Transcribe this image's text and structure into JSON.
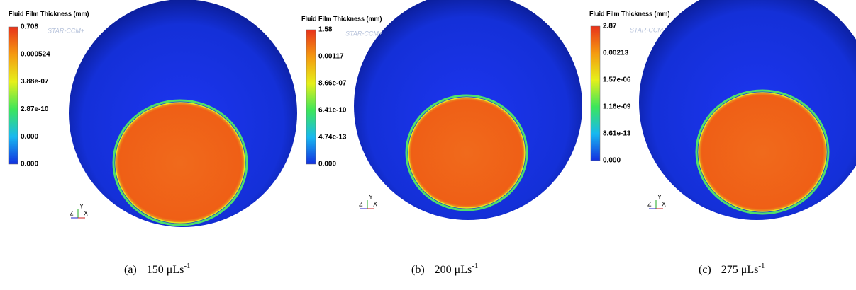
{
  "panels": [
    {
      "legend_title": "Fluid Film Thickness (mm)",
      "watermark": "STAR-CCM+",
      "scale_labels": [
        "0.708",
        "0.000524",
        "3.88e-07",
        "2.87e-10",
        "0.000",
        "0.000"
      ],
      "axes": [
        "Z",
        "Y",
        "X"
      ],
      "caption": {
        "label": "(a)",
        "value": "150 μLs",
        "superscript": "-1"
      }
    },
    {
      "legend_title": "Fluid Film Thickness (mm)",
      "watermark": "STAR-CCM+",
      "scale_labels": [
        "1.58",
        "0.00117",
        "8.66e-07",
        "6.41e-10",
        "4.74e-13",
        "0.000"
      ],
      "axes": [
        "Z",
        "Y",
        "X"
      ],
      "caption": {
        "label": "(b)",
        "value": "200 μLs",
        "superscript": "-1"
      }
    },
    {
      "legend_title": "Fluid Film Thickness (mm)",
      "watermark": "STAR-CCM+",
      "scale_labels": [
        "2.87",
        "0.00213",
        "1.57e-06",
        "1.16e-09",
        "8.61e-13",
        "0.000"
      ],
      "axes": [
        "Z",
        "Y",
        "X"
      ],
      "caption": {
        "label": "(c)",
        "value": "275 μLs",
        "superscript": "-1"
      }
    }
  ]
}
